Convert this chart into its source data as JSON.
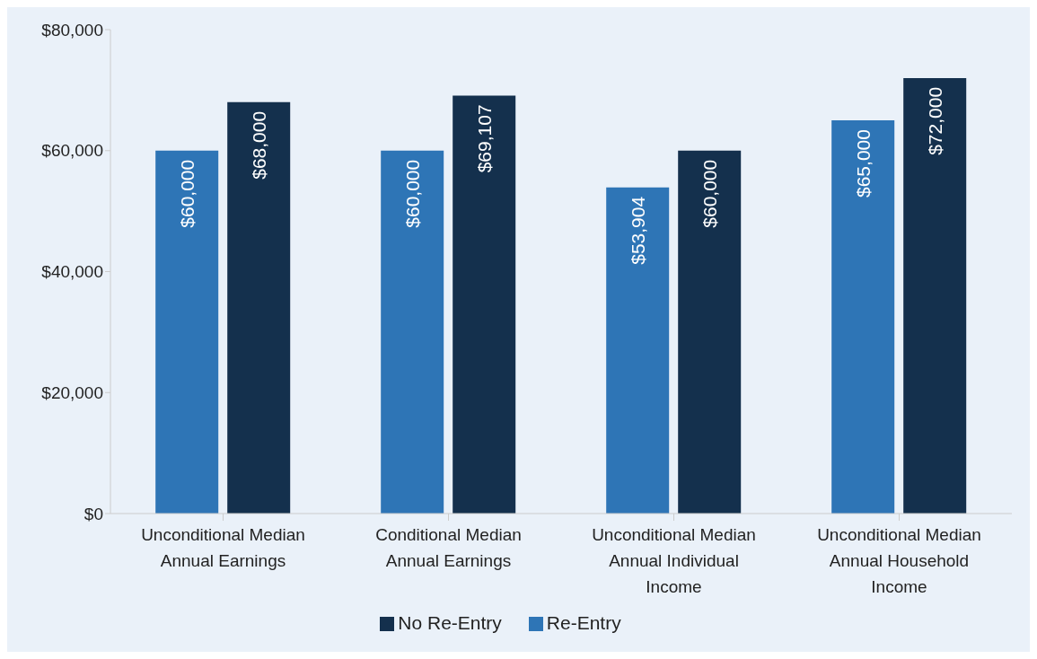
{
  "chart_data": {
    "type": "bar",
    "categories": [
      "Unconditional Median Annual Earnings",
      "Conditional Median Annual Earnings",
      "Unconditional Median Annual Individual Income",
      "Unconditional Median Annual Household Income"
    ],
    "series": [
      {
        "name": "Re-Entry",
        "color": "#2e75b6",
        "values": [
          60000,
          60000,
          53904,
          65000
        ],
        "value_labels": [
          "$60,000",
          "$60,000",
          "$53,904",
          "$65,000"
        ]
      },
      {
        "name": "No Re-Entry",
        "color": "#14304d",
        "values": [
          68000,
          69107,
          60000,
          72000
        ],
        "value_labels": [
          "$68,000",
          "$69,107",
          "$60,000",
          "$72,000"
        ]
      }
    ],
    "ylim": [
      0,
      80000
    ],
    "yticks": [
      {
        "value": 0,
        "label": "$0"
      },
      {
        "value": 20000,
        "label": "$20,000"
      },
      {
        "value": 40000,
        "label": "$40,000"
      },
      {
        "value": 60000,
        "label": "$60,000"
      },
      {
        "value": 80000,
        "label": "$80,000"
      }
    ],
    "legend": "bottom"
  }
}
